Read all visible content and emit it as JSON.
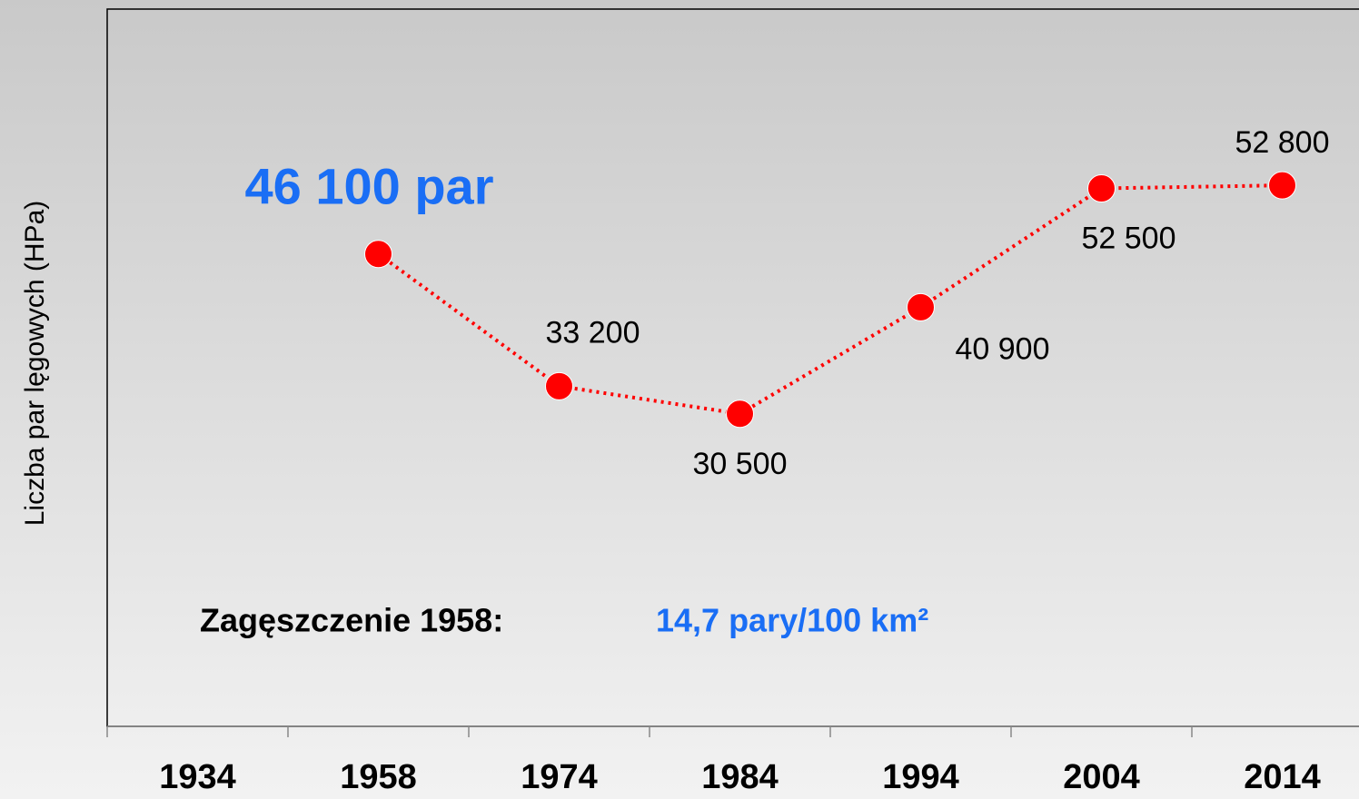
{
  "chart_data": {
    "type": "line",
    "y_label": "Liczba par lęgowych (HPa)",
    "categories": [
      "1934",
      "1958",
      "1974",
      "1984",
      "1994",
      "2004",
      "2014"
    ],
    "values": [
      null,
      46100,
      33200,
      30500,
      40900,
      52500,
      52800
    ],
    "value_labels": [
      null,
      "46 100 par",
      "33 200",
      "30 500",
      "40 900",
      "52 500",
      "52 800"
    ],
    "color": "#ff0000",
    "ylim": [
      0,
      70000
    ],
    "annotations": [
      "Zagęszczenie 1958:",
      "14,7 pary/100 km²"
    ]
  }
}
